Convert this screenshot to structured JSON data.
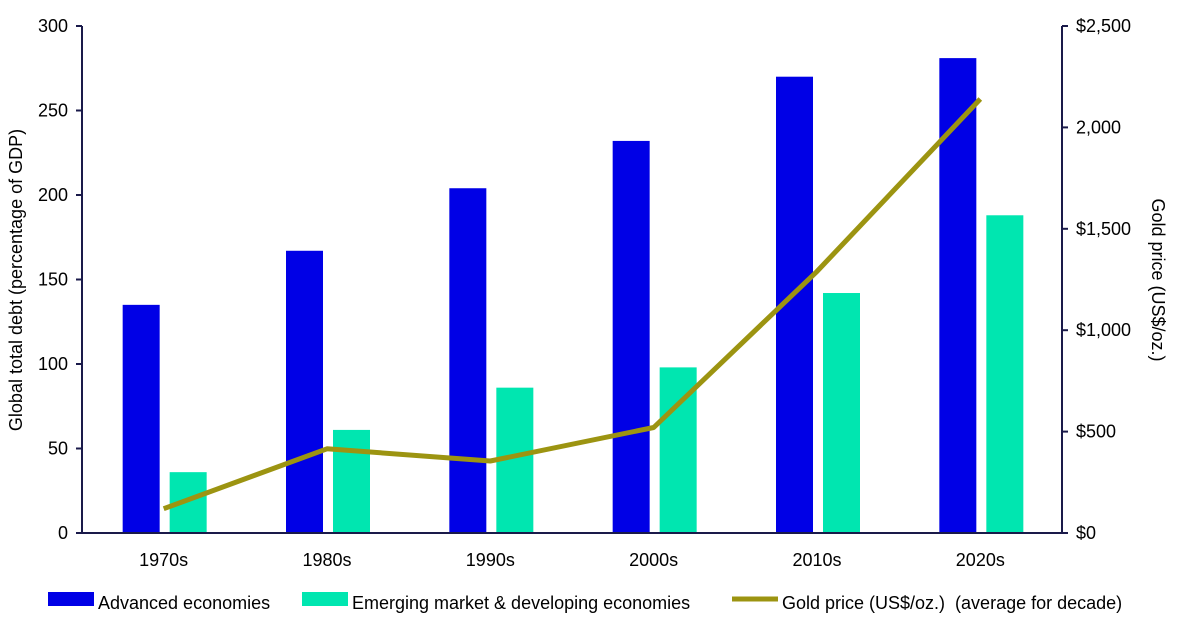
{
  "chart_data": {
    "type": "bar",
    "categories": [
      "1970s",
      "1980s",
      "1990s",
      "2000s",
      "2010s",
      "2020s"
    ],
    "series": [
      {
        "name": "Advanced economies",
        "type": "bar",
        "axis": "left",
        "color": "#0000e6",
        "values": [
          135,
          167,
          204,
          232,
          270,
          281
        ]
      },
      {
        "name": "Emerging market & developing economies",
        "type": "bar",
        "axis": "left",
        "color": "#00e6b0",
        "values": [
          36,
          61,
          86,
          98,
          142,
          188
        ]
      },
      {
        "name": "Gold price (US$/oz.)  (average for decade)",
        "type": "line",
        "axis": "right",
        "color": "#9c9411",
        "values": [
          120,
          415,
          355,
          520,
          1290,
          2140
        ]
      }
    ],
    "ylabel": "Global total debt (percentage of GDP)",
    "y2label": "Gold price (US$/oz.)",
    "ylim": [
      0,
      300
    ],
    "y2lim": [
      0,
      2500
    ],
    "yticks": [
      "0",
      "50",
      "100",
      "150",
      "200",
      "250",
      "300"
    ],
    "y2ticks": [
      "$0",
      "$500",
      "$1,000",
      "$1,500",
      "2,000",
      "$2,500"
    ],
    "grid": false,
    "legend_position": "bottom"
  }
}
